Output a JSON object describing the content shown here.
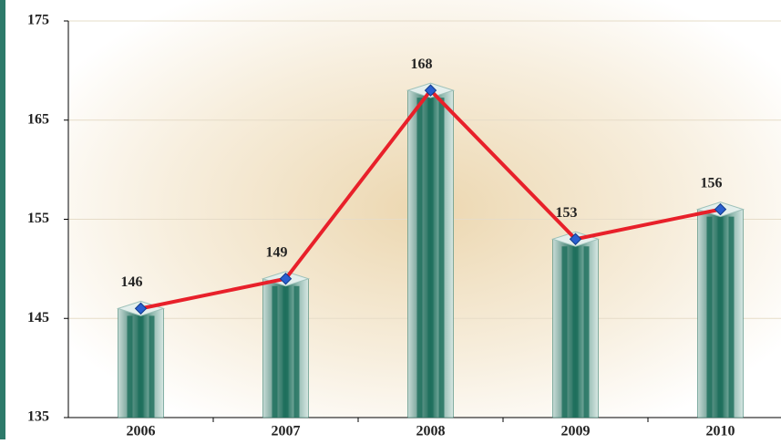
{
  "chart_data": {
    "type": "bar",
    "categories": [
      "2006",
      "2007",
      "2008",
      "2009",
      "2010"
    ],
    "values": [
      146,
      149,
      168,
      153,
      156
    ],
    "bar_color": "#1e6f5c",
    "line_overlay": true,
    "line_color": "#e8202a",
    "marker_color": "#2a5fd0",
    "ylim": [
      135,
      175
    ],
    "yticks": [
      135,
      145,
      155,
      165,
      175
    ],
    "grid": true
  }
}
